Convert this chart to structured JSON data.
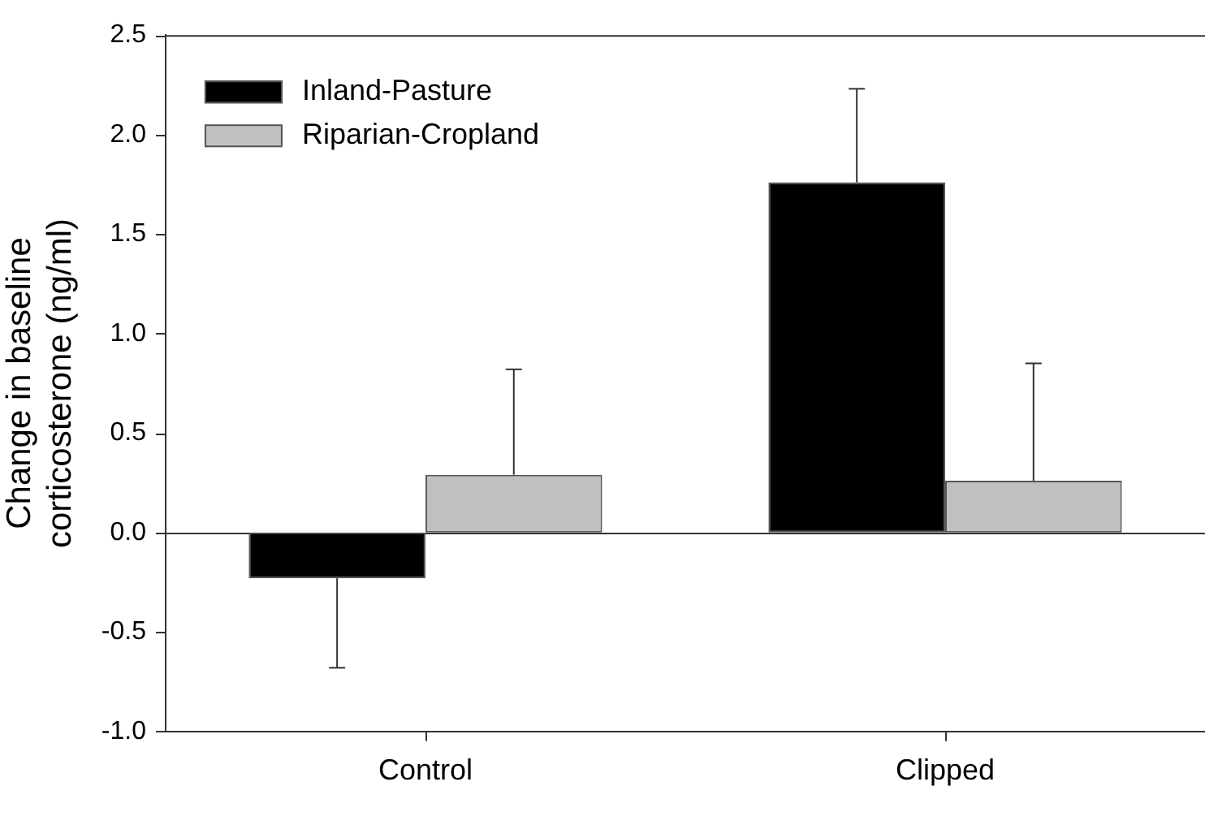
{
  "chart_data": {
    "type": "bar",
    "ylabel": "Change in baseline corticosterone (ng/ml)",
    "categories": [
      "Control",
      "Clipped"
    ],
    "series": [
      {
        "name": "Inland-Pasture",
        "color": "#000000",
        "values": [
          -0.23,
          1.76
        ],
        "errors": [
          [
            -0.68,
            -0.23
          ],
          [
            1.76,
            2.23
          ]
        ]
      },
      {
        "name": "Riparian-Cropland",
        "color": "#c0c0c0",
        "values": [
          0.29,
          0.26
        ],
        "errors": [
          [
            0.29,
            0.82
          ],
          [
            0.26,
            0.85
          ]
        ]
      }
    ],
    "ylim": [
      -1.0,
      2.5
    ],
    "yticks": [
      {
        "value": -1,
        "label": "-1.0"
      },
      {
        "value": -0.5,
        "label": "-0.5"
      },
      {
        "value": 0,
        "label": "0.0"
      },
      {
        "value": 0.5,
        "label": "0.5"
      },
      {
        "value": 1,
        "label": "1.0"
      },
      {
        "value": 1.5,
        "label": "1.5"
      },
      {
        "value": 2,
        "label": "2.0"
      },
      {
        "value": 2.5,
        "label": "2.5"
      }
    ],
    "ref_lines": [
      {
        "axis": "y",
        "value": 0
      }
    ],
    "legend": "top left"
  }
}
